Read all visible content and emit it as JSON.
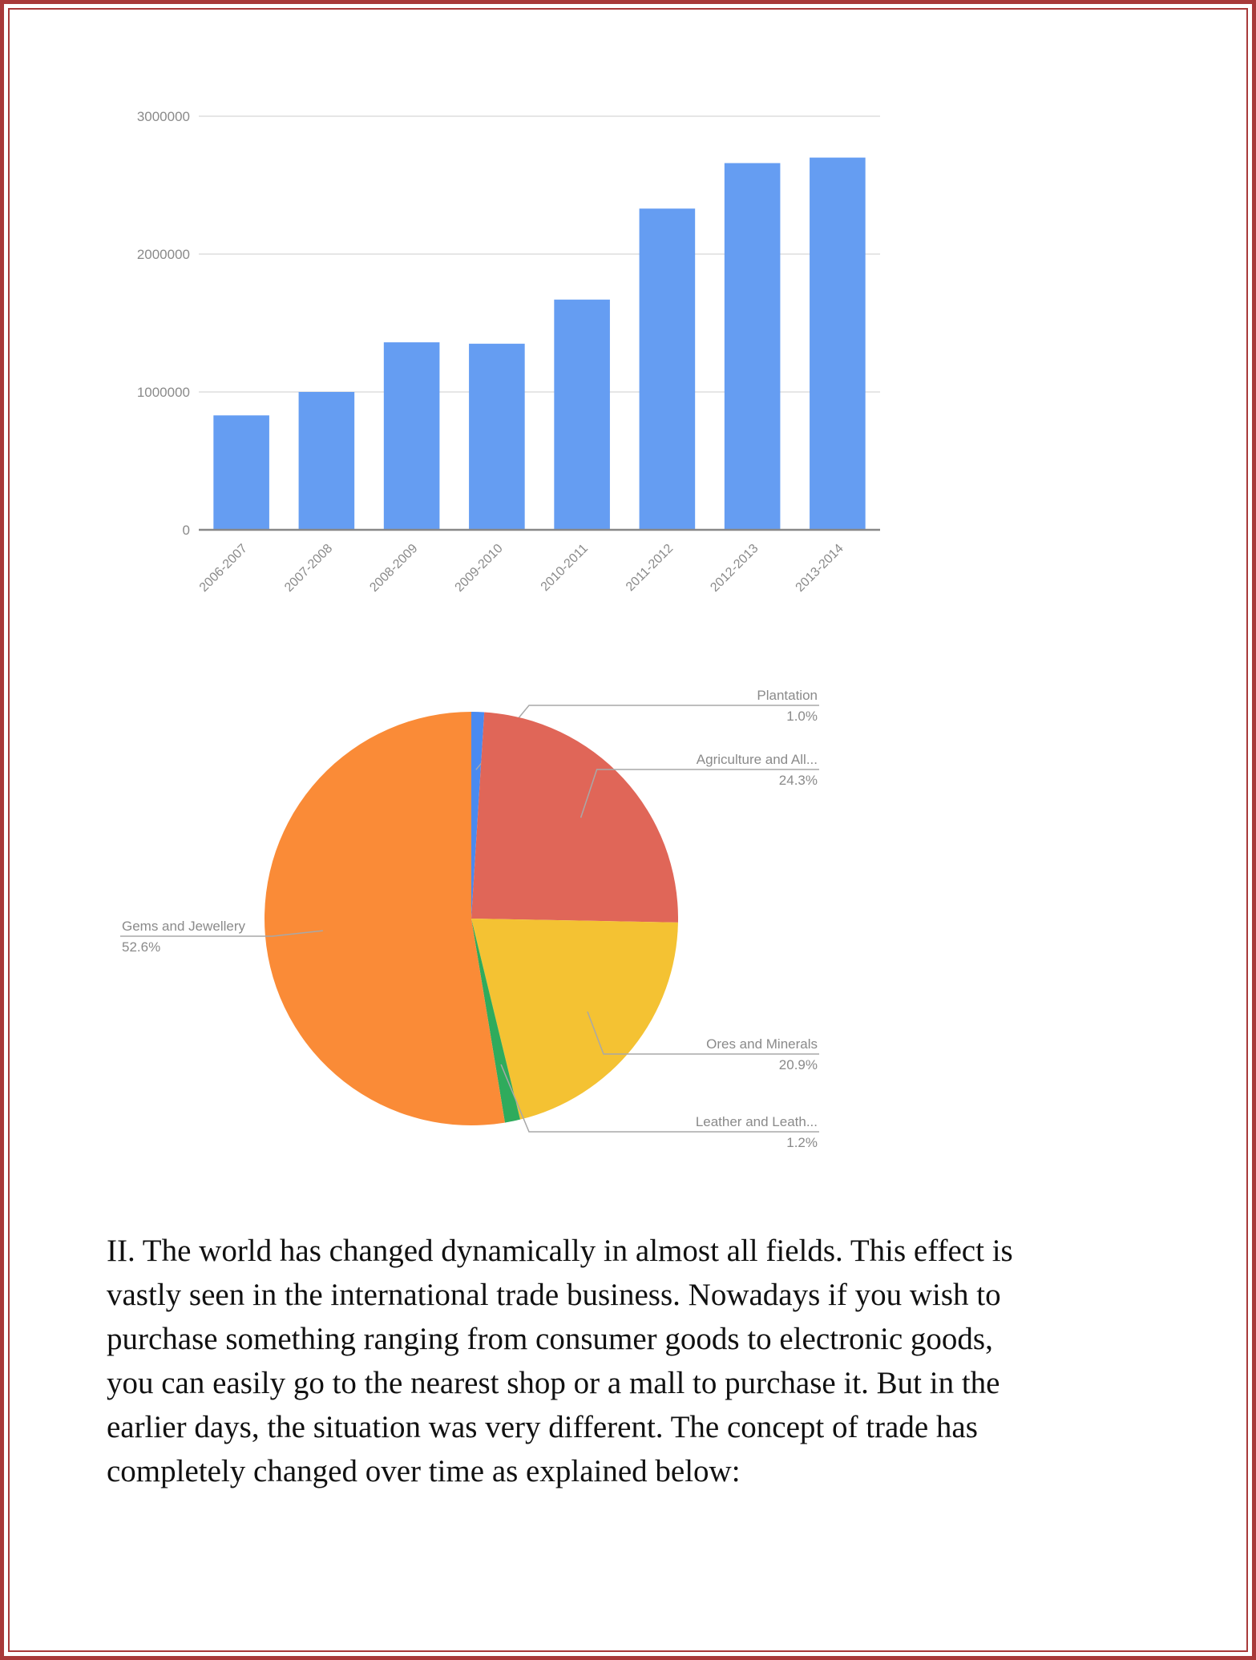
{
  "chart_data": [
    {
      "type": "bar",
      "categories": [
        "2006-2007",
        "2007-2008",
        "2008-2009",
        "2009-2010",
        "2010-2011",
        "2011-2012",
        "2012-2013",
        "2013-2014"
      ],
      "values": [
        830000,
        1000000,
        1360000,
        1350000,
        1670000,
        2330000,
        2660000,
        2700000
      ],
      "yticks": [
        "3000000",
        "2000000",
        "1000000",
        "0"
      ],
      "ylim": [
        0,
        3000000
      ],
      "grid": true,
      "colors": {
        "bar": "#659df2",
        "grid": "#e6e6e6",
        "axis": "#888888"
      }
    },
    {
      "type": "pie",
      "slices": [
        {
          "label": "Plantation",
          "percent_label": "1.0%",
          "value": 1.0,
          "color": "#4a8af0"
        },
        {
          "label": "Agriculture and All...",
          "percent_label": "24.3%",
          "value": 24.3,
          "color": "#e06658"
        },
        {
          "label": "Ores and Minerals",
          "percent_label": "20.9%",
          "value": 20.9,
          "color": "#f4c233"
        },
        {
          "label": "Leather and Leath...",
          "percent_label": "1.2%",
          "value": 1.2,
          "color": "#2fab5c"
        },
        {
          "label": "Gems and Jewellery",
          "percent_label": "52.6%",
          "value": 52.6,
          "color": "#fa8b37"
        }
      ]
    }
  ],
  "text": {
    "paragraph_lines": [
      "II. The world has changed dynamically in almost all fields. This effect is",
      "vastly seen in the international trade business. Nowadays if you wish to",
      "purchase something ranging from consumer goods to electronic goods,",
      "you can easily go to the nearest shop or a mall to purchase it. But in the",
      "earlier days, the situation was very different. The concept of trade has",
      "completely changed over time as explained below:"
    ]
  }
}
